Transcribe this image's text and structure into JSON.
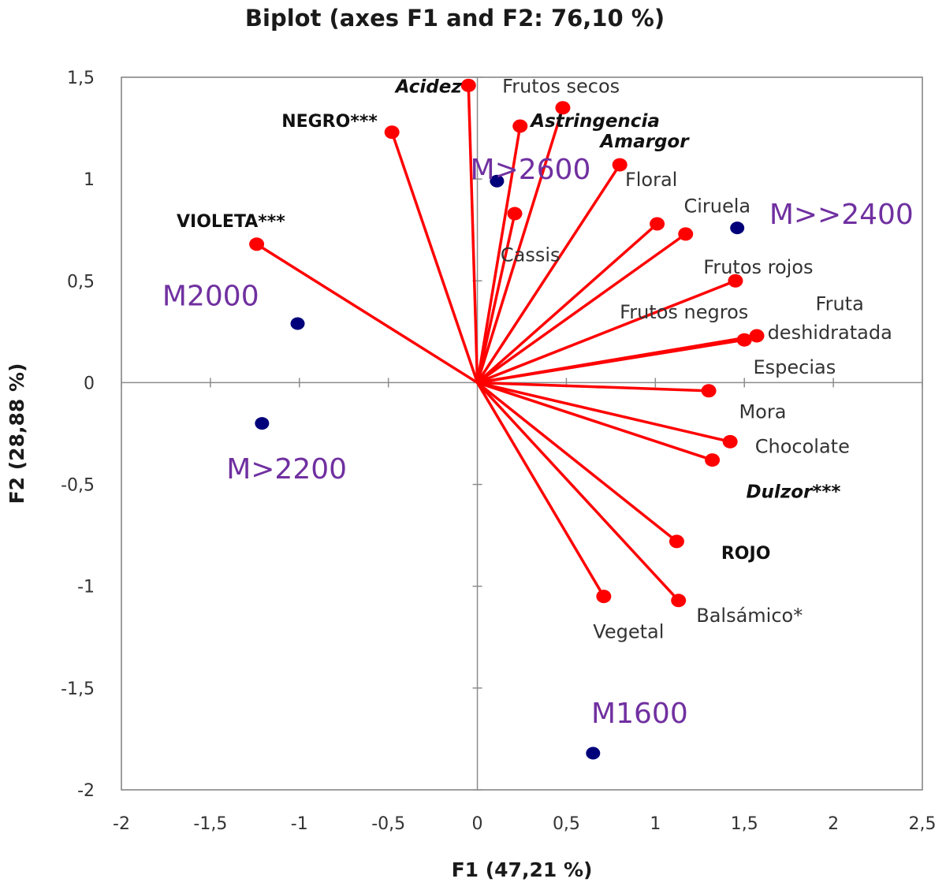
{
  "chart_data": {
    "type": "scatter",
    "title": "Biplot (axes F1 and F2: 76,10 %)",
    "xlabel": "F1 (47,21 %)",
    "ylabel": "F2 (28,88 %)",
    "xlim": [
      -2,
      2.5
    ],
    "ylim": [
      -2,
      1.5
    ],
    "x_ticks": [
      -2,
      -1.5,
      -1,
      -0.5,
      0,
      0.5,
      1,
      1.5,
      2,
      2.5
    ],
    "x_tick_labels": [
      "-2",
      "-1,5",
      "-1",
      "-0,5",
      "0",
      "0,5",
      "1",
      "1,5",
      "2",
      "2,5"
    ],
    "y_ticks": [
      -2,
      -1.5,
      -1,
      -0.5,
      0,
      0.5,
      1,
      1.5
    ],
    "y_tick_labels": [
      "-2",
      "-1,5",
      "-1",
      "-0,5",
      "0",
      "0,5",
      "1",
      "1,5"
    ],
    "grid": false,
    "legend": "none",
    "colors": {
      "variables": "#ff0000",
      "observations": "#00007a",
      "observation_labels": "#7030a0"
    },
    "variables": [
      {
        "name": "Acidez",
        "x": -0.05,
        "y": 1.46,
        "style": "bolditalic",
        "lx": -0.46,
        "ly": 1.46
      },
      {
        "name": "Frutos secos",
        "x": 0.48,
        "y": 1.35,
        "style": "normal",
        "lx": 0.14,
        "ly": 1.46
      },
      {
        "name": "Astringencia",
        "x": 0.24,
        "y": 1.26,
        "style": "bolditalic",
        "lx": 0.3,
        "ly": 1.29
      },
      {
        "name": "NEGRO***",
        "x": -0.48,
        "y": 1.23,
        "style": "bold",
        "lx": -1.1,
        "ly": 1.29
      },
      {
        "name": "Amargor",
        "x": 0.8,
        "y": 1.07,
        "style": "bolditalic",
        "lx": 0.69,
        "ly": 1.19
      },
      {
        "name": "Floral",
        "x": 0.8,
        "y": 1.07,
        "style": "normal",
        "lx": 0.83,
        "ly": 1.0
      },
      {
        "name": "Cassis",
        "x": 0.21,
        "y": 0.83,
        "style": "normal",
        "lx": 0.13,
        "ly": 0.63
      },
      {
        "name": "Ciruela",
        "x": 1.01,
        "y": 0.78,
        "style": "normal",
        "lx": 1.16,
        "ly": 0.87
      },
      {
        "name": "Frutos rojos",
        "x": 1.17,
        "y": 0.73,
        "style": "normal",
        "lx": 1.27,
        "ly": 0.57
      },
      {
        "name": "VIOLETA***",
        "x": -1.24,
        "y": 0.68,
        "style": "bold",
        "lx": -1.69,
        "ly": 0.8
      },
      {
        "name": "Frutos negros",
        "x": 1.45,
        "y": 0.5,
        "style": "normal",
        "lx": 0.8,
        "ly": 0.35
      },
      {
        "name": "Fruta",
        "x": 1.57,
        "y": 0.23,
        "style": "normal",
        "lx": 1.9,
        "ly": 0.39
      },
      {
        "name": "deshidratada",
        "x": 1.57,
        "y": 0.23,
        "style": "normal",
        "lx": 1.63,
        "ly": 0.25
      },
      {
        "name": "Especias",
        "x": 1.5,
        "y": 0.21,
        "style": "normal",
        "lx": 1.55,
        "ly": 0.08
      },
      {
        "name": "Mora",
        "x": 1.3,
        "y": -0.04,
        "style": "normal",
        "lx": 1.47,
        "ly": -0.14
      },
      {
        "name": "Chocolate",
        "x": 1.42,
        "y": -0.29,
        "style": "normal",
        "lx": 1.56,
        "ly": -0.31
      },
      {
        "name": "Dulzor***",
        "x": 1.32,
        "y": -0.38,
        "style": "bolditalic",
        "lx": 1.51,
        "ly": -0.53
      },
      {
        "name": "ROJO",
        "x": 1.12,
        "y": -0.78,
        "style": "bold",
        "lx": 1.37,
        "ly": -0.83
      },
      {
        "name": "Balsámico*",
        "x": 1.13,
        "y": -1.07,
        "style": "normal",
        "lx": 1.23,
        "ly": -1.14
      },
      {
        "name": "Vegetal",
        "x": 0.71,
        "y": -1.05,
        "style": "normal",
        "lx": 0.65,
        "ly": -1.22
      }
    ],
    "observations": [
      {
        "name": "M>2600",
        "x": 0.11,
        "y": 0.99,
        "lx": -0.04,
        "ly": 1.05
      },
      {
        "name": "M>>2400",
        "x": 1.46,
        "y": 0.76,
        "lx": 1.64,
        "ly": 0.83
      },
      {
        "name": "M2000",
        "x": -1.01,
        "y": 0.29,
        "lx": -1.77,
        "ly": 0.43
      },
      {
        "name": "M>2200",
        "x": -1.21,
        "y": -0.2,
        "lx": -1.41,
        "ly": -0.42
      },
      {
        "name": "M1600",
        "x": 0.65,
        "y": -1.82,
        "lx": 0.64,
        "ly": -1.62
      }
    ]
  }
}
